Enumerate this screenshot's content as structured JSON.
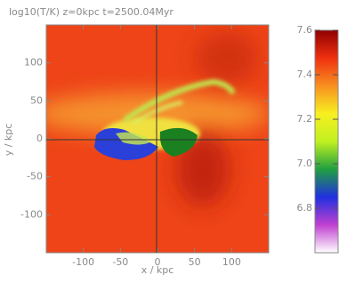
{
  "chart_data": {
    "type": "heatmap",
    "title": "log10(T/K)  z=0kpc  t=2500.04Myr",
    "xlabel": "x / kpc",
    "ylabel": "y / kpc",
    "xlim": [
      -150,
      150
    ],
    "ylim": [
      -150,
      150
    ],
    "xticks": [
      -100,
      -50,
      0,
      50,
      100
    ],
    "yticks": [
      -100,
      -50,
      0,
      50,
      100
    ],
    "colorbar": {
      "lim": [
        6.6,
        7.6
      ],
      "ticks": [
        6.8,
        {
          "value": 7,
          "label": "7.0"
        },
        7.2,
        7.4,
        7.6
      ],
      "colors": [
        "#ffffff",
        "#c040d0",
        "#2030e0",
        "#20a040",
        "#c0f020",
        "#f8f020",
        "#f89020",
        "#f03010",
        "#900000"
      ]
    }
  }
}
